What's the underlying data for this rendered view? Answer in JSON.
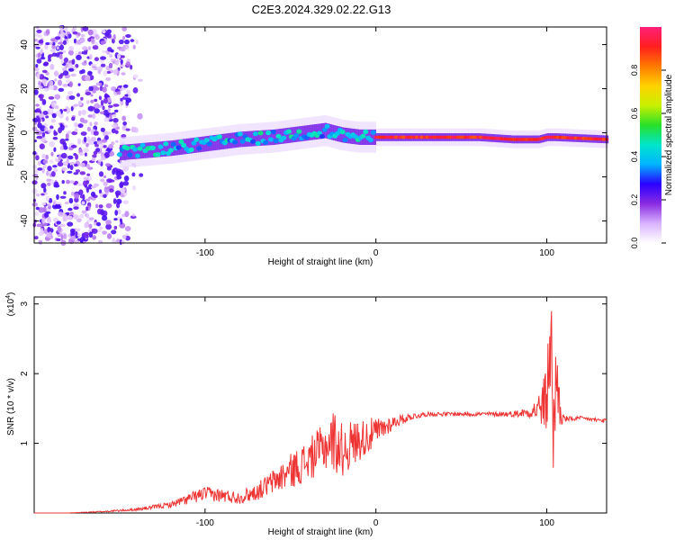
{
  "title": "C2E3.2024.329.02.22.G13",
  "chart_data": [
    {
      "type": "heatmap",
      "xlabel": "Height of straight line (km)",
      "ylabel": "Frequency (Hz)",
      "xlim": [
        -200,
        135
      ],
      "ylim": [
        -50,
        48
      ],
      "xticks": [
        -100,
        0,
        100
      ],
      "yticks": [
        -40,
        -20,
        0,
        20,
        40
      ],
      "grid": false,
      "colorbar": {
        "label": "Normalized spectral amplitude",
        "range": [
          0,
          1
        ],
        "ticks": [
          "0.0",
          "0.2",
          "0.4",
          "0.6",
          "0.8"
        ],
        "colors": [
          "#ffffff",
          "#d9b3ff",
          "#8a2be2",
          "#2a00ff",
          "#00b4ff",
          "#00e5cc",
          "#28e028",
          "#c8f000",
          "#ffd200",
          "#ff7a00",
          "#ff1f1f",
          "#ff1f7a"
        ]
      },
      "ridge": {
        "x": [
          -150,
          -120,
          -100,
          -80,
          -60,
          -40,
          -30,
          -20,
          -10,
          0,
          20,
          60,
          80,
          95,
          100,
          105,
          135
        ],
        "freq": [
          -9,
          -7,
          -5,
          -3,
          -2,
          0,
          1,
          -1,
          -2,
          -2,
          -2,
          -2,
          -3,
          -3,
          -2,
          -2,
          -3
        ]
      },
      "noise_region": {
        "x": [
          -200,
          -135
        ],
        "freq": [
          -50,
          48
        ]
      }
    },
    {
      "type": "line",
      "xlabel": "Height of straight line (km)",
      "ylabel": "SNR (10 * v/v)",
      "y_multiplier_label": "(x10",
      "y_multiplier_exp": "4",
      "y_multiplier_close": ")",
      "xlim": [
        -200,
        135
      ],
      "ylim": [
        0,
        3.1
      ],
      "xticks": [
        -100,
        0,
        100
      ],
      "yticks": [
        1,
        2,
        3
      ],
      "line_color": "#ee3333",
      "series": [
        {
          "x": [
            -200,
            -180,
            -160,
            -140,
            -120,
            -110,
            -100,
            -90,
            -80,
            -70,
            -60,
            -50,
            -40,
            -30,
            -25,
            -20,
            -10,
            0,
            10,
            20,
            30,
            40,
            60,
            80,
            90,
            95,
            100,
            102,
            104,
            106,
            108,
            110,
            115,
            120,
            135
          ],
          "values": [
            0.0,
            0.0,
            0.02,
            0.05,
            0.12,
            0.2,
            0.28,
            0.25,
            0.22,
            0.3,
            0.45,
            0.6,
            0.75,
            0.95,
            1.05,
            0.9,
            1.05,
            1.15,
            1.3,
            1.38,
            1.42,
            1.42,
            1.42,
            1.42,
            1.45,
            1.5,
            1.6,
            2.6,
            1.2,
            2.0,
            1.4,
            1.35,
            1.35,
            1.36,
            1.32
          ],
          "noise_amplitude": [
            0.0,
            0.0,
            0.01,
            0.02,
            0.04,
            0.08,
            0.1,
            0.1,
            0.09,
            0.12,
            0.18,
            0.25,
            0.3,
            0.35,
            0.45,
            0.4,
            0.3,
            0.22,
            0.1,
            0.05,
            0.03,
            0.03,
            0.03,
            0.04,
            0.08,
            0.2,
            0.5,
            1.0,
            1.0,
            0.6,
            0.2,
            0.05,
            0.03,
            0.03,
            0.03
          ]
        }
      ]
    }
  ]
}
